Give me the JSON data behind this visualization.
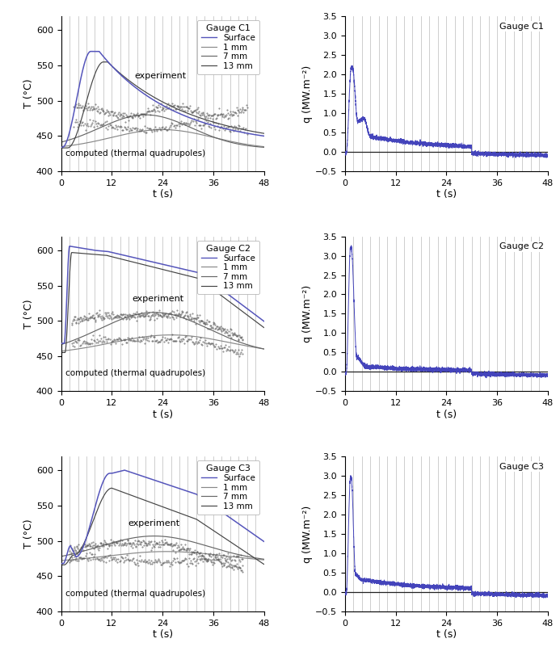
{
  "gauge_labels": [
    "Gauge C1",
    "Gauge C2",
    "Gauge C3"
  ],
  "legend_labels": [
    "Surface",
    "1 mm",
    "7 mm",
    "13 mm"
  ],
  "temp_ylabel": "T (°C)",
  "heat_ylabel": "q (MW.m⁻²)",
  "xlabel": "t (s)",
  "xlim": [
    0,
    48
  ],
  "temp_ylim": [
    400,
    620
  ],
  "heat_ylim": [
    -0.5,
    3.5
  ],
  "xticks": [
    0,
    12,
    24,
    36,
    48
  ],
  "temp_yticks": [
    400,
    450,
    500,
    550,
    600
  ],
  "heat_yticks": [
    -0.5,
    0.0,
    0.5,
    1.0,
    1.5,
    2.0,
    2.5,
    3.0,
    3.5
  ],
  "surface_color": "#5555bb",
  "heat_color": "#4444bb",
  "grid_color": "#bbbbbb",
  "zero_line_color": "#222222",
  "annotation_exp": "experiment",
  "annotation_comp": "computed (thermal quadrupoles)"
}
